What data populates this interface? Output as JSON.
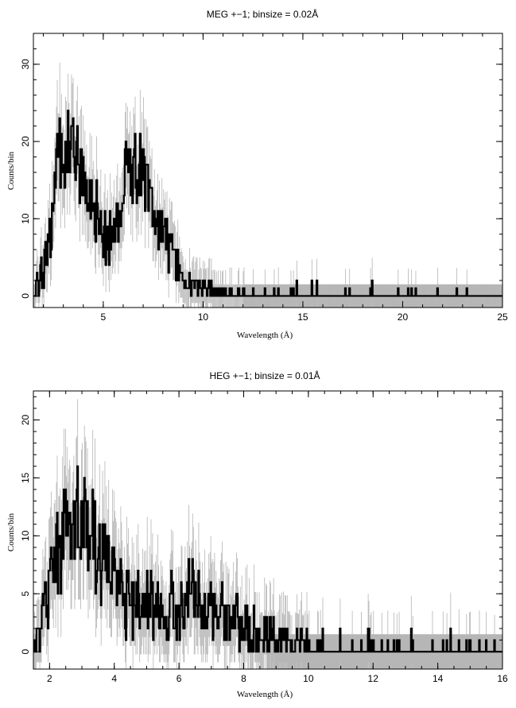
{
  "chart_data": [
    {
      "type": "line",
      "title": "MEG +−1; binsize = 0.02Å",
      "xlabel": "Wavelength (Å)",
      "ylabel": "Counts/bin",
      "xlim": [
        1.5,
        25
      ],
      "ylim": [
        -1.5,
        34
      ],
      "x_ticks": [
        5,
        10,
        15,
        20,
        25
      ],
      "y_ticks": [
        0,
        10,
        20,
        30
      ],
      "grid": false,
      "series": [
        {
          "style": "histogram with gray error bars",
          "x": [
            1.5,
            2.0,
            2.5,
            2.7,
            3.0,
            3.5,
            4.0,
            4.5,
            5.0,
            5.5,
            6.0,
            6.5,
            6.8,
            7.0,
            7.5,
            8.0,
            8.5,
            9.0,
            9.5,
            10.0,
            10.5,
            11.0,
            12.0,
            13.0,
            14.0,
            15.0,
            15.7,
            16.0,
            17.0,
            18.0,
            18.6,
            19.0,
            20.0,
            21.0,
            22.0,
            23.0,
            23.2,
            24.0,
            25.0
          ],
          "y": [
            0,
            3,
            12,
            20,
            18,
            19,
            15,
            12,
            8,
            7,
            15,
            16,
            17,
            15,
            10,
            9,
            5,
            2,
            1,
            1,
            1,
            0.5,
            0.3,
            0.2,
            0.2,
            0.2,
            0.4,
            0.2,
            0.2,
            0.2,
            0.4,
            0.2,
            0.2,
            0.2,
            0.1,
            0.2,
            0.2,
            0.1,
            0
          ]
        }
      ],
      "error_band_y": [
        -1.5,
        1.5
      ]
    },
    {
      "type": "line",
      "title": "HEG +−1; binsize = 0.01Å",
      "xlabel": "Wavelength (Å)",
      "ylabel": "Counts/bin",
      "xlim": [
        1.5,
        16
      ],
      "ylim": [
        -1.5,
        22.5
      ],
      "x_ticks": [
        2,
        4,
        6,
        8,
        10,
        12,
        14,
        16
      ],
      "y_ticks": [
        0,
        5,
        10,
        15,
        20
      ],
      "grid": false,
      "series": [
        {
          "style": "histogram with gray error bars",
          "x": [
            1.5,
            1.8,
            2.0,
            2.3,
            2.5,
            2.8,
            3.0,
            3.3,
            3.5,
            4.0,
            4.5,
            5.0,
            5.5,
            6.0,
            6.3,
            6.6,
            7.0,
            7.5,
            8.0,
            8.5,
            9.0,
            9.5,
            10.0,
            10.5,
            11.0,
            12.0,
            13.0,
            14.0,
            15.0,
            16.0
          ],
          "y": [
            0,
            3,
            6,
            9,
            11,
            12,
            11,
            10,
            9,
            7,
            4,
            4,
            3,
            4,
            5,
            4,
            4,
            3,
            2,
            1.5,
            1,
            0.8,
            0.6,
            0.5,
            0.3,
            0.3,
            0.3,
            0.2,
            0.2,
            0
          ]
        }
      ],
      "error_band_y": [
        -1.5,
        1.5
      ]
    }
  ]
}
